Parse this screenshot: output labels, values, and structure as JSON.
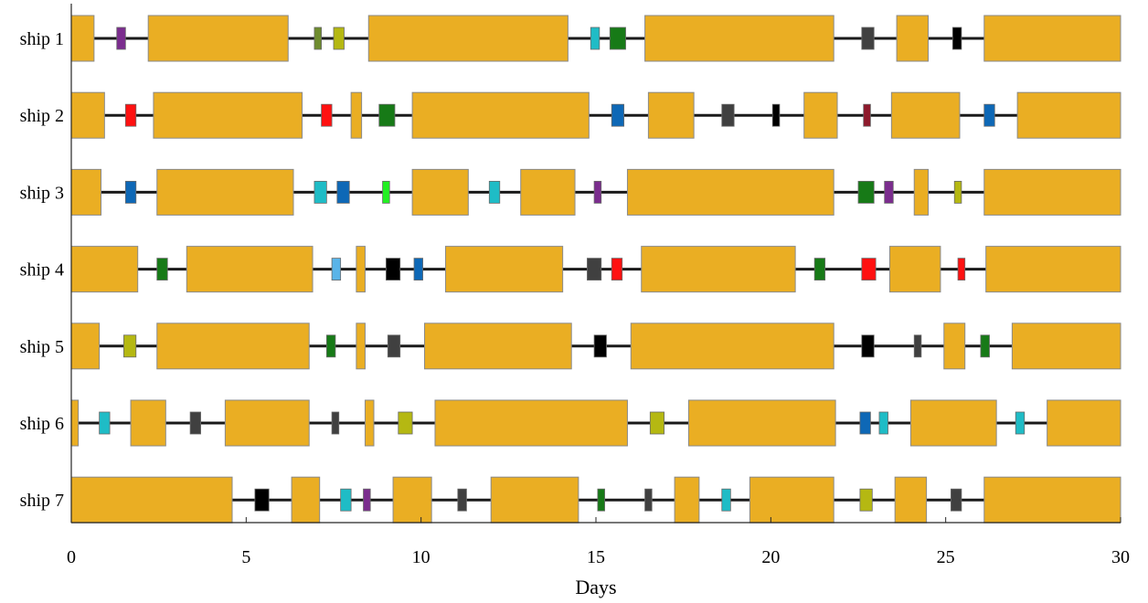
{
  "chart_data": {
    "type": "gantt",
    "xlabel": "Days",
    "xlim": [
      0,
      30
    ],
    "xticks": [
      "0",
      "5",
      "10",
      "15",
      "20",
      "25",
      "30"
    ],
    "colors": {
      "sailing": "#EAAE23",
      "purple": "#7B2D8E",
      "olive": "#6E8C2E",
      "yellow-olive": "#B5B812",
      "teal": "#1FBCC6",
      "green": "#177A17",
      "gray": "#404040",
      "black": "#000000",
      "red": "#FF1111",
      "blue": "#0E68B6",
      "maroon": "#8E1A2C",
      "bright-green": "#22F022",
      "light-blue": "#5AB4E8"
    },
    "ships": [
      {
        "label": "ship 1",
        "sailing": [
          [
            0,
            0.65
          ],
          [
            2.2,
            6.2
          ],
          [
            8.5,
            14.2
          ],
          [
            16.4,
            21.8
          ],
          [
            23.6,
            24.5
          ],
          [
            26.1,
            30
          ]
        ],
        "ports": [
          [
            1.3,
            1.55,
            "purple"
          ],
          [
            6.95,
            7.15,
            "olive"
          ],
          [
            7.5,
            7.8,
            "yellow-olive"
          ],
          [
            14.85,
            15.1,
            "teal"
          ],
          [
            15.4,
            15.85,
            "green"
          ],
          [
            22.6,
            22.95,
            "gray"
          ],
          [
            25.2,
            25.45,
            "black"
          ]
        ]
      },
      {
        "label": "ship 2",
        "sailing": [
          [
            0,
            0.95
          ],
          [
            2.35,
            6.6
          ],
          [
            8.0,
            8.3
          ],
          [
            9.75,
            14.8
          ],
          [
            16.5,
            17.8
          ],
          [
            20.95,
            21.9
          ],
          [
            23.45,
            25.4
          ],
          [
            27.05,
            30
          ]
        ],
        "ports": [
          [
            1.55,
            1.85,
            "red"
          ],
          [
            7.15,
            7.45,
            "red"
          ],
          [
            8.8,
            9.25,
            "green"
          ],
          [
            15.45,
            15.8,
            "blue"
          ],
          [
            18.6,
            18.95,
            "gray"
          ],
          [
            20.05,
            20.25,
            "black"
          ],
          [
            22.65,
            22.85,
            "maroon"
          ],
          [
            26.1,
            26.4,
            "blue"
          ]
        ]
      },
      {
        "label": "ship 3",
        "sailing": [
          [
            0,
            0.85
          ],
          [
            2.45,
            6.35
          ],
          [
            9.75,
            11.35
          ],
          [
            12.85,
            14.4
          ],
          [
            15.9,
            21.8
          ],
          [
            24.1,
            24.5
          ],
          [
            26.1,
            30
          ]
        ],
        "ports": [
          [
            1.55,
            1.85,
            "blue"
          ],
          [
            6.95,
            7.3,
            "teal"
          ],
          [
            7.6,
            7.95,
            "blue"
          ],
          [
            8.9,
            9.1,
            "bright-green"
          ],
          [
            11.95,
            12.25,
            "teal"
          ],
          [
            14.95,
            15.15,
            "purple"
          ],
          [
            22.5,
            22.95,
            "green"
          ],
          [
            23.25,
            23.5,
            "purple"
          ],
          [
            25.25,
            25.45,
            "yellow-olive"
          ]
        ]
      },
      {
        "label": "ship 4",
        "sailing": [
          [
            0,
            1.9
          ],
          [
            3.3,
            6.9
          ],
          [
            8.15,
            8.4
          ],
          [
            10.7,
            14.05
          ],
          [
            16.3,
            20.7
          ],
          [
            23.4,
            24.85
          ],
          [
            26.15,
            30
          ]
        ],
        "ports": [
          [
            2.45,
            2.75,
            "green"
          ],
          [
            7.45,
            7.7,
            "light-blue"
          ],
          [
            9.0,
            9.4,
            "black"
          ],
          [
            9.8,
            10.05,
            "blue"
          ],
          [
            14.75,
            15.15,
            "gray"
          ],
          [
            15.45,
            15.75,
            "red"
          ],
          [
            21.25,
            21.55,
            "green"
          ],
          [
            22.6,
            23.0,
            "red"
          ],
          [
            25.35,
            25.55,
            "red"
          ]
        ]
      },
      {
        "label": "ship 5",
        "sailing": [
          [
            0,
            0.8
          ],
          [
            2.45,
            6.8
          ],
          [
            8.15,
            8.4
          ],
          [
            10.1,
            14.3
          ],
          [
            16.0,
            21.8
          ],
          [
            24.95,
            25.55
          ],
          [
            26.9,
            30
          ]
        ],
        "ports": [
          [
            1.5,
            1.85,
            "yellow-olive"
          ],
          [
            7.3,
            7.55,
            "green"
          ],
          [
            9.05,
            9.4,
            "gray"
          ],
          [
            14.95,
            15.3,
            "black"
          ],
          [
            22.6,
            22.95,
            "black"
          ],
          [
            24.1,
            24.3,
            "gray"
          ],
          [
            26.0,
            26.25,
            "green"
          ]
        ]
      },
      {
        "label": "ship 6",
        "sailing": [
          [
            0,
            0.2
          ],
          [
            1.7,
            2.7
          ],
          [
            4.4,
            6.8
          ],
          [
            8.4,
            8.65
          ],
          [
            10.4,
            15.9
          ],
          [
            17.65,
            21.85
          ],
          [
            24.0,
            26.45
          ],
          [
            27.9,
            30
          ]
        ],
        "ports": [
          [
            0.8,
            1.1,
            "teal"
          ],
          [
            3.4,
            3.7,
            "gray"
          ],
          [
            7.45,
            7.65,
            "gray"
          ],
          [
            9.35,
            9.75,
            "yellow-olive"
          ],
          [
            16.55,
            16.95,
            "yellow-olive"
          ],
          [
            22.55,
            22.85,
            "blue"
          ],
          [
            23.1,
            23.35,
            "teal"
          ],
          [
            27.0,
            27.25,
            "teal"
          ]
        ]
      },
      {
        "label": "ship 7",
        "sailing": [
          [
            0,
            4.6
          ],
          [
            6.3,
            7.1
          ],
          [
            9.2,
            10.3
          ],
          [
            12.0,
            14.5
          ],
          [
            17.25,
            17.95
          ],
          [
            19.4,
            21.8
          ],
          [
            23.55,
            24.45
          ],
          [
            26.1,
            30
          ]
        ],
        "ports": [
          [
            5.25,
            5.65,
            "black"
          ],
          [
            7.7,
            8.0,
            "teal"
          ],
          [
            8.35,
            8.55,
            "purple"
          ],
          [
            11.05,
            11.3,
            "gray"
          ],
          [
            15.05,
            15.25,
            "green"
          ],
          [
            16.4,
            16.6,
            "gray"
          ],
          [
            18.6,
            18.85,
            "teal"
          ],
          [
            22.55,
            22.9,
            "yellow-olive"
          ],
          [
            25.15,
            25.45,
            "gray"
          ]
        ]
      }
    ]
  }
}
